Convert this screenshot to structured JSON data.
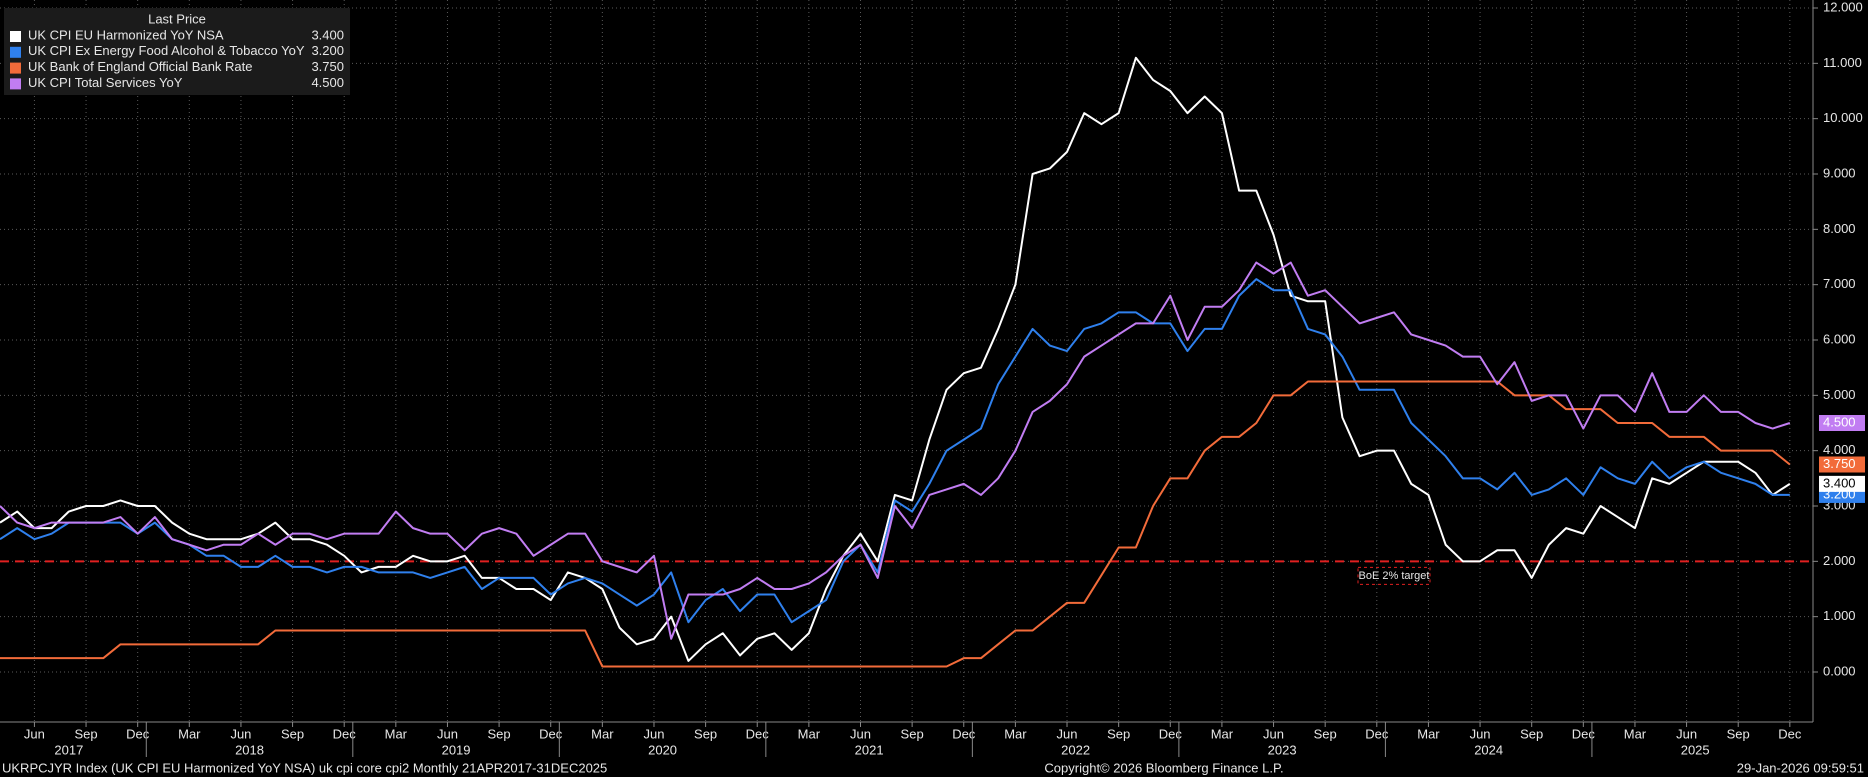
{
  "chart_data": {
    "type": "line",
    "legend_title": "Last Price",
    "x": [
      "2017-04",
      "2017-05",
      "2017-06",
      "2017-07",
      "2017-08",
      "2017-09",
      "2017-10",
      "2017-11",
      "2017-12",
      "2018-01",
      "2018-02",
      "2018-03",
      "2018-04",
      "2018-05",
      "2018-06",
      "2018-07",
      "2018-08",
      "2018-09",
      "2018-10",
      "2018-11",
      "2018-12",
      "2019-01",
      "2019-02",
      "2019-03",
      "2019-04",
      "2019-05",
      "2019-06",
      "2019-07",
      "2019-08",
      "2019-09",
      "2019-10",
      "2019-11",
      "2019-12",
      "2020-01",
      "2020-02",
      "2020-03",
      "2020-04",
      "2020-05",
      "2020-06",
      "2020-07",
      "2020-08",
      "2020-09",
      "2020-10",
      "2020-11",
      "2020-12",
      "2021-01",
      "2021-02",
      "2021-03",
      "2021-04",
      "2021-05",
      "2021-06",
      "2021-07",
      "2021-08",
      "2021-09",
      "2021-10",
      "2021-11",
      "2021-12",
      "2022-01",
      "2022-02",
      "2022-03",
      "2022-04",
      "2022-05",
      "2022-06",
      "2022-07",
      "2022-08",
      "2022-09",
      "2022-10",
      "2022-11",
      "2022-12",
      "2023-01",
      "2023-02",
      "2023-03",
      "2023-04",
      "2023-05",
      "2023-06",
      "2023-07",
      "2023-08",
      "2023-09",
      "2023-10",
      "2023-11",
      "2023-12",
      "2024-01",
      "2024-02",
      "2024-03",
      "2024-04",
      "2024-05",
      "2024-06",
      "2024-07",
      "2024-08",
      "2024-09",
      "2024-10",
      "2024-11",
      "2024-12",
      "2025-01",
      "2025-02",
      "2025-03",
      "2025-04",
      "2025-05",
      "2025-06",
      "2025-07",
      "2025-08",
      "2025-09",
      "2025-10",
      "2025-11",
      "2025-12"
    ],
    "series": [
      {
        "name": "UK CPI EU Harmonized YoY NSA",
        "color": "#ffffff",
        "last_price": {
          "value": 3.4,
          "label": "3.400"
        },
        "values": [
          2.7,
          2.9,
          2.6,
          2.6,
          2.9,
          3.0,
          3.0,
          3.1,
          3.0,
          3.0,
          2.7,
          2.5,
          2.4,
          2.4,
          2.4,
          2.5,
          2.7,
          2.4,
          2.4,
          2.3,
          2.1,
          1.8,
          1.9,
          1.9,
          2.1,
          2.0,
          2.0,
          2.1,
          1.7,
          1.7,
          1.5,
          1.5,
          1.3,
          1.8,
          1.7,
          1.5,
          0.8,
          0.5,
          0.6,
          1.0,
          0.2,
          0.5,
          0.7,
          0.3,
          0.6,
          0.7,
          0.4,
          0.7,
          1.5,
          2.1,
          2.5,
          2.0,
          3.2,
          3.1,
          4.2,
          5.1,
          5.4,
          5.5,
          6.2,
          7.0,
          9.0,
          9.1,
          9.4,
          10.1,
          9.9,
          10.1,
          11.1,
          10.7,
          10.5,
          10.1,
          10.4,
          10.1,
          8.7,
          8.7,
          7.9,
          6.8,
          6.7,
          6.7,
          4.6,
          3.9,
          4.0,
          4.0,
          3.4,
          3.2,
          2.3,
          2.0,
          2.0,
          2.2,
          2.2,
          1.7,
          2.3,
          2.6,
          2.5,
          3.0,
          2.8,
          2.6,
          3.5,
          3.4,
          3.6,
          3.8,
          3.8,
          3.8,
          3.6,
          3.2,
          3.4
        ]
      },
      {
        "name": "UK CPI Ex Energy Food Alcohol & Tobacco YoY",
        "color": "#2f80ed",
        "last_price": {
          "value": 3.2,
          "label": "3.200"
        },
        "values": [
          2.4,
          2.6,
          2.4,
          2.5,
          2.7,
          2.7,
          2.7,
          2.7,
          2.5,
          2.7,
          2.4,
          2.3,
          2.1,
          2.1,
          1.9,
          1.9,
          2.1,
          1.9,
          1.9,
          1.8,
          1.9,
          1.9,
          1.8,
          1.8,
          1.8,
          1.7,
          1.8,
          1.9,
          1.5,
          1.7,
          1.7,
          1.7,
          1.4,
          1.6,
          1.7,
          1.6,
          1.4,
          1.2,
          1.4,
          1.8,
          0.9,
          1.3,
          1.5,
          1.1,
          1.4,
          1.4,
          0.9,
          1.1,
          1.3,
          2.0,
          2.3,
          1.8,
          3.1,
          2.9,
          3.4,
          4.0,
          4.2,
          4.4,
          5.2,
          5.7,
          6.2,
          5.9,
          5.8,
          6.2,
          6.3,
          6.5,
          6.5,
          6.3,
          6.3,
          5.8,
          6.2,
          6.2,
          6.8,
          7.1,
          6.9,
          6.9,
          6.2,
          6.1,
          5.7,
          5.1,
          5.1,
          5.1,
          4.5,
          4.2,
          3.9,
          3.5,
          3.5,
          3.3,
          3.6,
          3.2,
          3.3,
          3.5,
          3.2,
          3.7,
          3.5,
          3.4,
          3.8,
          3.5,
          3.7,
          3.8,
          3.6,
          3.5,
          3.4,
          3.2,
          3.2
        ]
      },
      {
        "name": "UK Bank of England Official Bank Rate",
        "color": "#f26b3a",
        "last_price": {
          "value": 3.75,
          "label": "3.750"
        },
        "values": [
          0.25,
          0.25,
          0.25,
          0.25,
          0.25,
          0.25,
          0.25,
          0.5,
          0.5,
          0.5,
          0.5,
          0.5,
          0.5,
          0.5,
          0.5,
          0.5,
          0.75,
          0.75,
          0.75,
          0.75,
          0.75,
          0.75,
          0.75,
          0.75,
          0.75,
          0.75,
          0.75,
          0.75,
          0.75,
          0.75,
          0.75,
          0.75,
          0.75,
          0.75,
          0.75,
          0.1,
          0.1,
          0.1,
          0.1,
          0.1,
          0.1,
          0.1,
          0.1,
          0.1,
          0.1,
          0.1,
          0.1,
          0.1,
          0.1,
          0.1,
          0.1,
          0.1,
          0.1,
          0.1,
          0.1,
          0.1,
          0.25,
          0.25,
          0.5,
          0.75,
          0.75,
          1.0,
          1.25,
          1.25,
          1.75,
          2.25,
          2.25,
          3.0,
          3.5,
          3.5,
          4.0,
          4.25,
          4.25,
          4.5,
          5.0,
          5.0,
          5.25,
          5.25,
          5.25,
          5.25,
          5.25,
          5.25,
          5.25,
          5.25,
          5.25,
          5.25,
          5.25,
          5.25,
          5.0,
          5.0,
          5.0,
          4.75,
          4.75,
          4.75,
          4.5,
          4.5,
          4.5,
          4.25,
          4.25,
          4.25,
          4.0,
          4.0,
          4.0,
          4.0,
          3.75
        ]
      },
      {
        "name": "UK CPI Total Services YoY",
        "color": "#c17df2",
        "last_price": {
          "value": 4.5,
          "label": "4.500"
        },
        "values": [
          3.0,
          2.7,
          2.6,
          2.7,
          2.7,
          2.7,
          2.7,
          2.8,
          2.5,
          2.8,
          2.4,
          2.3,
          2.2,
          2.3,
          2.3,
          2.5,
          2.3,
          2.5,
          2.5,
          2.4,
          2.5,
          2.5,
          2.5,
          2.9,
          2.6,
          2.5,
          2.5,
          2.2,
          2.5,
          2.6,
          2.5,
          2.1,
          2.3,
          2.5,
          2.5,
          2.0,
          1.9,
          1.8,
          2.1,
          0.6,
          1.4,
          1.4,
          1.4,
          1.5,
          1.7,
          1.5,
          1.5,
          1.6,
          1.8,
          2.1,
          2.3,
          1.7,
          3.0,
          2.6,
          3.2,
          3.3,
          3.4,
          3.2,
          3.5,
          4.0,
          4.7,
          4.9,
          5.2,
          5.7,
          5.9,
          6.1,
          6.3,
          6.3,
          6.8,
          6.0,
          6.6,
          6.6,
          6.9,
          7.4,
          7.2,
          7.4,
          6.8,
          6.9,
          6.6,
          6.3,
          6.4,
          6.5,
          6.1,
          6.0,
          5.9,
          5.7,
          5.7,
          5.2,
          5.6,
          4.9,
          5.0,
          5.0,
          4.4,
          5.0,
          5.0,
          4.7,
          5.4,
          4.7,
          4.7,
          5.0,
          4.7,
          4.7,
          4.5,
          4.4,
          4.5
        ]
      }
    ],
    "ylim": [
      -1,
      12
    ],
    "yticks": [
      {
        "value": 0,
        "label": "0.000"
      },
      {
        "value": 1,
        "label": "1.000"
      },
      {
        "value": 2,
        "label": "2.000"
      },
      {
        "value": 3,
        "label": "3.000"
      },
      {
        "value": 4,
        "label": "4.000"
      },
      {
        "value": 5,
        "label": "5.000"
      },
      {
        "value": 6,
        "label": "6.000"
      },
      {
        "value": 7,
        "label": "7.000"
      },
      {
        "value": 8,
        "label": "8.000"
      },
      {
        "value": 9,
        "label": "9.000"
      },
      {
        "value": 10,
        "label": "10.000"
      },
      {
        "value": 11,
        "label": "11.000"
      },
      {
        "value": 12,
        "label": "12.000"
      }
    ],
    "xticks": [
      {
        "value": "2017-06",
        "label": "Jun"
      },
      {
        "value": "2017-09",
        "label": "Sep"
      },
      {
        "value": "2017-12",
        "label": "Dec"
      },
      {
        "value": "2018-03",
        "label": "Mar"
      },
      {
        "value": "2018-06",
        "label": "Jun"
      },
      {
        "value": "2018-09",
        "label": "Sep"
      },
      {
        "value": "2018-12",
        "label": "Dec"
      },
      {
        "value": "2019-03",
        "label": "Mar"
      },
      {
        "value": "2019-06",
        "label": "Jun"
      },
      {
        "value": "2019-09",
        "label": "Sep"
      },
      {
        "value": "2019-12",
        "label": "Dec"
      },
      {
        "value": "2020-03",
        "label": "Mar"
      },
      {
        "value": "2020-06",
        "label": "Jun"
      },
      {
        "value": "2020-09",
        "label": "Sep"
      },
      {
        "value": "2020-12",
        "label": "Dec"
      },
      {
        "value": "2021-03",
        "label": "Mar"
      },
      {
        "value": "2021-06",
        "label": "Jun"
      },
      {
        "value": "2021-09",
        "label": "Sep"
      },
      {
        "value": "2021-12",
        "label": "Dec"
      },
      {
        "value": "2022-03",
        "label": "Mar"
      },
      {
        "value": "2022-06",
        "label": "Jun"
      },
      {
        "value": "2022-09",
        "label": "Sep"
      },
      {
        "value": "2022-12",
        "label": "Dec"
      },
      {
        "value": "2023-03",
        "label": "Mar"
      },
      {
        "value": "2023-06",
        "label": "Jun"
      },
      {
        "value": "2023-09",
        "label": "Sep"
      },
      {
        "value": "2023-12",
        "label": "Dec"
      },
      {
        "value": "2024-03",
        "label": "Mar"
      },
      {
        "value": "2024-06",
        "label": "Jun"
      },
      {
        "value": "2024-09",
        "label": "Sep"
      },
      {
        "value": "2024-12",
        "label": "Dec"
      },
      {
        "value": "2025-03",
        "label": "Mar"
      },
      {
        "value": "2025-06",
        "label": "Jun"
      },
      {
        "value": "2025-09",
        "label": "Sep"
      },
      {
        "value": "2025-12",
        "label": "Dec"
      }
    ],
    "year_labels": [
      "2017",
      "2018",
      "2019",
      "2020",
      "2021",
      "2022",
      "2023",
      "2024",
      "2025"
    ],
    "target": {
      "value": 2,
      "label": "BoE 2% target",
      "color": "#e02020"
    },
    "grid": true,
    "footer": {
      "left": "UKRPCJYR Index (UK CPI EU Harmonized YoY NSA) uk cpi core cpi2 Monthly 21APR2017-31DEC2025",
      "center": "Copyright© 2026 Bloomberg Finance L.P.",
      "right": "29-Jan-2026 09:59:51"
    }
  }
}
